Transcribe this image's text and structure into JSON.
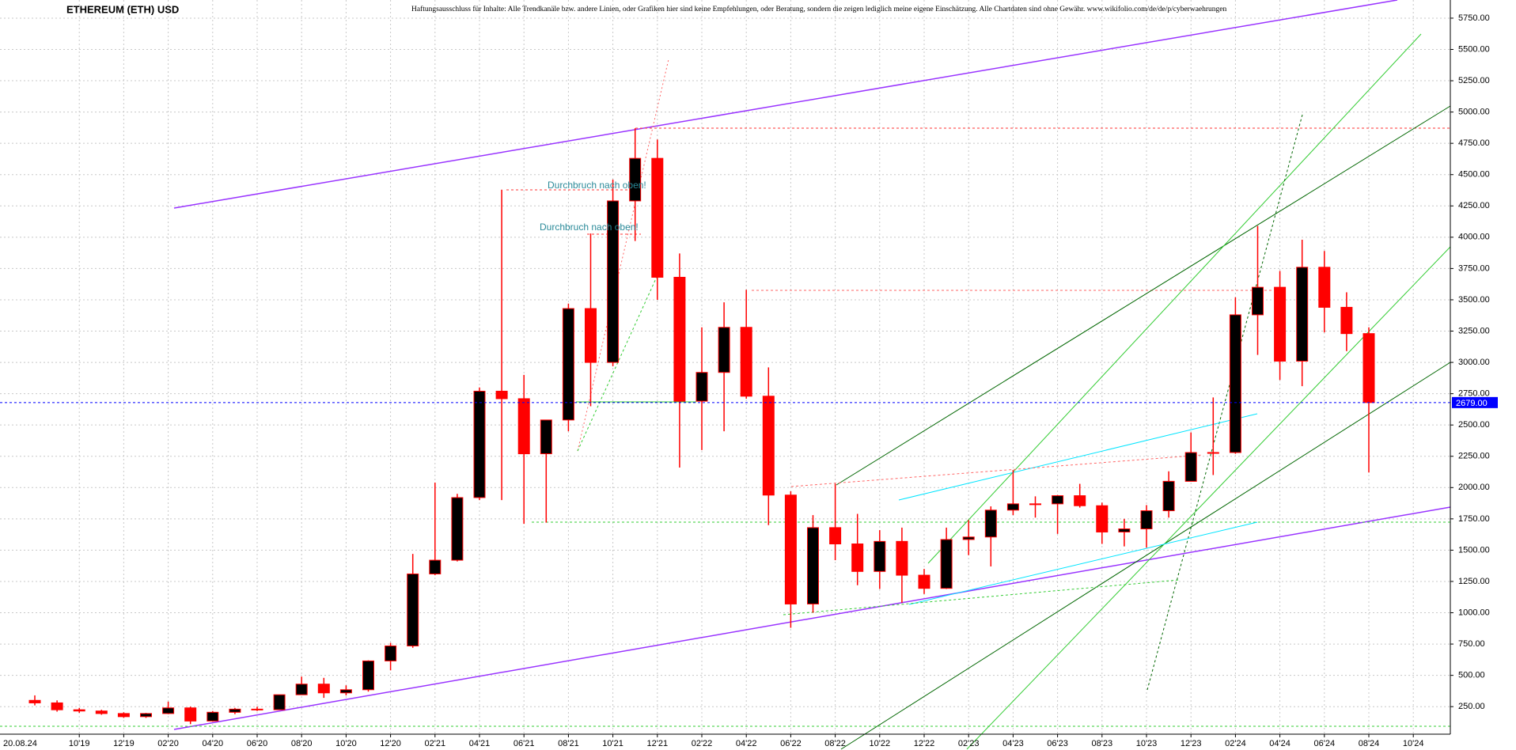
{
  "chart_data": {
    "type": "candlestick",
    "title": "ETHEREUM (ETH) USD",
    "subtitle": "Haftungsausschluss für Inhalte: Alle Trendkanäle bzw. andere Linien, oder Grafiken hier sind keine Empfehlungen, oder Beratung, sondern die zeigen lediglich meine eigene Einschätzung. Alle Chartdaten sind ohne Gewähr.  www.wikifolio.com/de/de/p/cyberwaehrungen",
    "date": "20.08.24",
    "annotations": [
      "Durchbruch nach oben!",
      "Durchbruch nach oben!"
    ],
    "last_price": {
      "value": 2679,
      "label": "2679.00"
    },
    "categories": [
      null,
      null,
      "10'19",
      null,
      "12'19",
      null,
      "02'20",
      null,
      "04'20",
      null,
      "06'20",
      null,
      "08'20",
      null,
      "10'20",
      null,
      "12'20",
      null,
      "02'21",
      null,
      "04'21",
      null,
      "06'21",
      null,
      "08'21",
      null,
      "10'21",
      null,
      "12'21",
      null,
      "02'22",
      null,
      "04'22",
      null,
      "06'22",
      null,
      "08'22",
      null,
      "10'22",
      null,
      "12'22",
      null,
      "02'23",
      null,
      "04'23",
      null,
      "06'23",
      null,
      "08'23",
      null,
      "10'23",
      null,
      "12'23",
      null,
      "02'24",
      null,
      "04'24",
      null,
      "06'24",
      null,
      "08'24",
      null,
      "10'24"
    ],
    "open": [
      300,
      280,
      225,
      215,
      195,
      170,
      195,
      240,
      135,
      205,
      230,
      225,
      345,
      430,
      360,
      385,
      615,
      735,
      1310,
      1420,
      1920,
      2770,
      2710,
      2270,
      2540,
      3430,
      3000,
      4290,
      4630,
      3680,
      2690,
      2920,
      3280,
      2730,
      1940,
      1070,
      1680,
      1550,
      1330,
      1570,
      1300,
      1195,
      1585,
      1605,
      1820,
      1870,
      1870,
      1935,
      1855,
      1645,
      1670,
      1815,
      2050,
      2280,
      2280,
      3380,
      3600,
      3010,
      3760,
      3440,
      3230,
      null,
      null
    ],
    "high": [
      340,
      300,
      240,
      225,
      205,
      200,
      290,
      250,
      215,
      240,
      250,
      345,
      490,
      480,
      420,
      620,
      760,
      1470,
      2040,
      1950,
      2800,
      4380,
      2900,
      2540,
      3470,
      4030,
      4460,
      4870,
      4780,
      3870,
      3280,
      3480,
      3580,
      2960,
      1970,
      1780,
      2030,
      1790,
      1660,
      1680,
      1350,
      1680,
      1740,
      1850,
      2140,
      1930,
      1940,
      2030,
      1880,
      1750,
      1860,
      2130,
      2440,
      2720,
      3520,
      4090,
      3730,
      3980,
      3890,
      3560,
      3280,
      null,
      null
    ],
    "low": [
      260,
      210,
      200,
      185,
      160,
      160,
      190,
      110,
      130,
      190,
      215,
      225,
      345,
      320,
      340,
      370,
      540,
      720,
      1300,
      1410,
      1900,
      1900,
      1710,
      1720,
      2450,
      2650,
      2970,
      3970,
      3500,
      2160,
      2300,
      2450,
      2710,
      1700,
      880,
      1000,
      1420,
      1220,
      1190,
      1080,
      1150,
      1190,
      1460,
      1370,
      1780,
      1760,
      1630,
      1840,
      1550,
      1530,
      1520,
      1760,
      2050,
      2100,
      2270,
      3060,
      2860,
      2810,
      3240,
      3090,
      2120,
      null,
      null
    ],
    "close": [
      280,
      225,
      215,
      195,
      170,
      195,
      240,
      135,
      205,
      230,
      225,
      345,
      430,
      360,
      385,
      615,
      735,
      1310,
      1420,
      1920,
      2770,
      2710,
      2270,
      2540,
      3430,
      3000,
      4290,
      4630,
      3680,
      2690,
      2920,
      3280,
      2730,
      1940,
      1070,
      1680,
      1550,
      1330,
      1570,
      1300,
      1195,
      1585,
      1605,
      1820,
      1870,
      1870,
      1935,
      1855,
      1645,
      1670,
      1815,
      2050,
      2280,
      2280,
      3380,
      3600,
      3010,
      3760,
      3440,
      3230,
      2679,
      null,
      null
    ],
    "up_color": "#000000",
    "down_color": "#ff0000",
    "ylim": [
      30,
      5895
    ],
    "yticks": [
      {
        "value": 250,
        "label": "250.00"
      },
      {
        "value": 500,
        "label": "500.00"
      },
      {
        "value": 750,
        "label": "750.00"
      },
      {
        "value": 1000,
        "label": "1000.00"
      },
      {
        "value": 1250,
        "label": "1250.00"
      },
      {
        "value": 1500,
        "label": "1500.00"
      },
      {
        "value": 1750,
        "label": "1750.00"
      },
      {
        "value": 2000,
        "label": "2000.00"
      },
      {
        "value": 2250,
        "label": "2250.00"
      },
      {
        "value": 2500,
        "label": "2500.00"
      },
      {
        "value": 2750,
        "label": "2750.00"
      },
      {
        "value": 3000,
        "label": "3000.00"
      },
      {
        "value": 3250,
        "label": "3250.00"
      },
      {
        "value": 3500,
        "label": "3500.00"
      },
      {
        "value": 3750,
        "label": "3750.00"
      },
      {
        "value": 4000,
        "label": "4000.00"
      },
      {
        "value": 4250,
        "label": "4250.00"
      },
      {
        "value": 4500,
        "label": "4500.00"
      },
      {
        "value": 4750,
        "label": "4750.00"
      },
      {
        "value": 5000,
        "label": "5000.00"
      },
      {
        "value": 5250,
        "label": "5250.00"
      },
      {
        "value": 5500,
        "label": "5500.00"
      },
      {
        "value": 5750,
        "label": "5750.00"
      }
    ],
    "grid": true
  }
}
